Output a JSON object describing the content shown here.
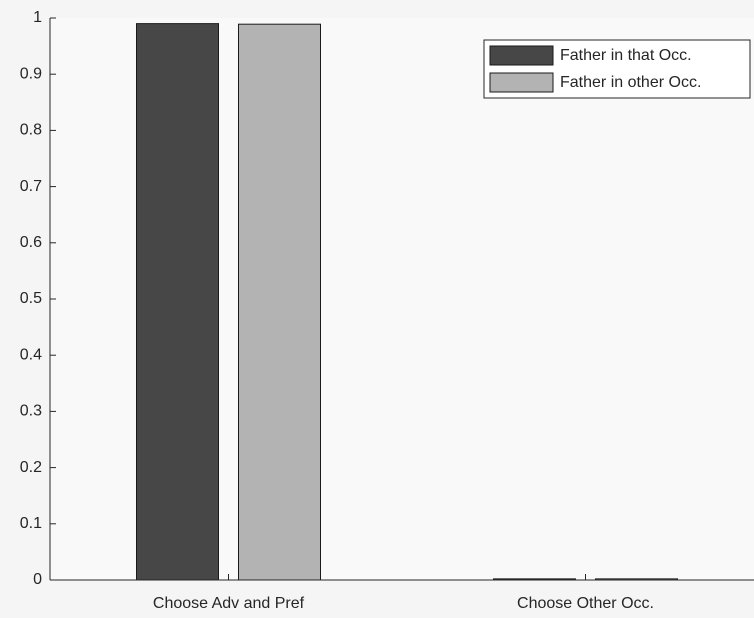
{
  "chart_data": {
    "type": "bar",
    "categories": [
      "Choose Adv and Pref",
      "Choose Other Occ."
    ],
    "series": [
      {
        "name": "Father in that Occ.",
        "color": "#474747",
        "values": [
          0.99,
          0.002
        ]
      },
      {
        "name": "Father in other Occ.",
        "color": "#b3b3b3",
        "values": [
          0.989,
          0.002
        ]
      }
    ],
    "ylim": [
      0,
      1
    ],
    "yticks": [
      0,
      0.1,
      0.2,
      0.3,
      0.4,
      0.5,
      0.6,
      0.7,
      0.8,
      0.9,
      1
    ],
    "legend": "northeast"
  }
}
